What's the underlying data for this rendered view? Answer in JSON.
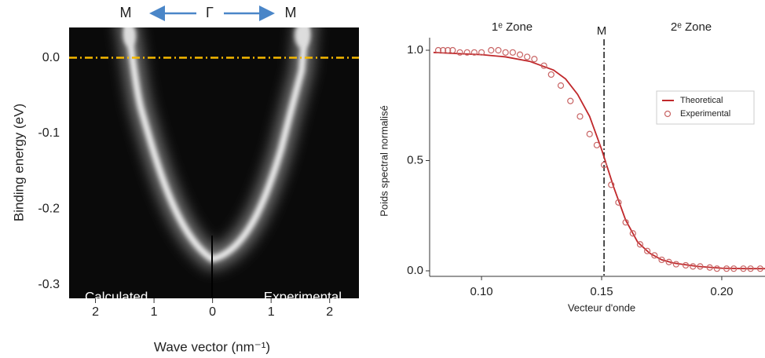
{
  "chart_data": [
    {
      "type": "image",
      "top_labels": [
        "M",
        "Γ",
        "M"
      ],
      "panel_labels": [
        "Calculated",
        "Experimental"
      ],
      "y_label": "Binding energy (eV)",
      "x_label": "Wave vector (nm⁻¹)",
      "xlim": [
        -2.45,
        2.5
      ],
      "ylim": [
        -0.318,
        0.04
      ],
      "xticks": [
        {
          "value": -2,
          "label": "2"
        },
        {
          "value": -1,
          "label": "1"
        },
        0,
        1,
        2
      ],
      "yticks": [
        {
          "value": 0,
          "label": "0.0"
        },
        -0.1,
        -0.2,
        -0.3
      ],
      "fermi_level": 0,
      "fermi_color": "#f5b800"
    },
    {
      "type": "line",
      "annotations": [
        "1ᵉ Zone",
        "M",
        "2ᵉ Zone"
      ],
      "m_line": 0.151,
      "x_label": "Vecteur d'onde",
      "y_label": "Poids spectral normalisé",
      "xlim": [
        0.0784,
        0.218
      ],
      "ylim": [
        -0.025,
        1.057
      ],
      "xticks": [
        {
          "value": 0.1,
          "label": "0.10"
        },
        0.15,
        {
          "value": 0.2,
          "label": "0.20"
        }
      ],
      "yticks": [
        {
          "value": 0,
          "label": "0.0"
        },
        0.5,
        {
          "value": 1,
          "label": "1.0"
        }
      ],
      "legend": "upper right",
      "series": [
        {
          "name": "Theoretical",
          "color": "#c0282b",
          "style": "line",
          "x": [
            0.08,
            0.09,
            0.1,
            0.11,
            0.12,
            0.13,
            0.135,
            0.14,
            0.145,
            0.15,
            0.155,
            0.16,
            0.165,
            0.17,
            0.175,
            0.18,
            0.19,
            0.2,
            0.21,
            0.218
          ],
          "values": [
            0.99,
            0.985,
            0.98,
            0.97,
            0.95,
            0.91,
            0.87,
            0.8,
            0.7,
            0.55,
            0.38,
            0.23,
            0.13,
            0.08,
            0.05,
            0.035,
            0.02,
            0.012,
            0.01,
            0.01
          ]
        },
        {
          "name": "Experimental",
          "color": "#c86464",
          "style": "markers",
          "x": [
            0.082,
            0.084,
            0.086,
            0.088,
            0.091,
            0.094,
            0.097,
            0.1,
            0.104,
            0.107,
            0.11,
            0.113,
            0.116,
            0.119,
            0.122,
            0.126,
            0.129,
            0.133,
            0.137,
            0.141,
            0.145,
            0.148,
            0.151,
            0.154,
            0.157,
            0.16,
            0.163,
            0.166,
            0.169,
            0.172,
            0.175,
            0.178,
            0.181,
            0.185,
            0.188,
            0.191,
            0.195,
            0.198,
            0.202,
            0.205,
            0.209,
            0.212,
            0.216
          ],
          "values": [
            1.0,
            1.0,
            1.0,
            1.0,
            0.99,
            0.99,
            0.99,
            0.99,
            1.0,
            1.0,
            0.99,
            0.99,
            0.98,
            0.97,
            0.96,
            0.93,
            0.89,
            0.84,
            0.77,
            0.7,
            0.62,
            0.57,
            0.48,
            0.39,
            0.31,
            0.22,
            0.17,
            0.12,
            0.09,
            0.07,
            0.05,
            0.04,
            0.03,
            0.025,
            0.02,
            0.02,
            0.015,
            0.01,
            0.01,
            0.01,
            0.01,
            0.01,
            0.01
          ]
        }
      ]
    }
  ]
}
